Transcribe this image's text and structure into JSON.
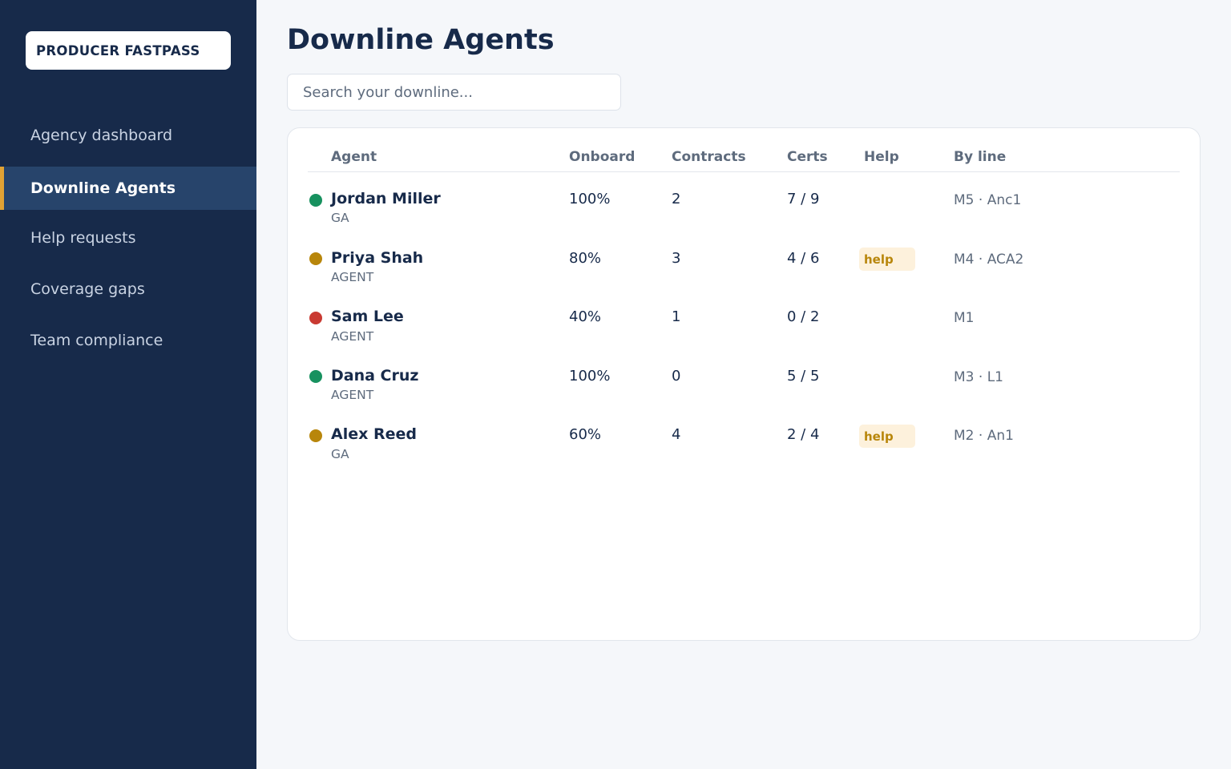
{
  "sidebar": {
    "brand": "PRODUCER FASTPASS",
    "items": [
      {
        "label": "Agency dashboard",
        "active": false
      },
      {
        "label": "Downline Agents",
        "active": true
      },
      {
        "label": "Help requests",
        "active": false
      },
      {
        "label": "Coverage gaps",
        "active": false
      },
      {
        "label": "Team compliance",
        "active": false
      }
    ]
  },
  "main": {
    "title": "Downline Agents",
    "search": {
      "placeholder": "Search your downline...",
      "value": ""
    },
    "table": {
      "columns": [
        "Agent",
        "Onboard",
        "Contracts",
        "Certs",
        "Help",
        "By line"
      ],
      "rows": [
        {
          "name": "Jordan Miller",
          "role": "GA",
          "status_color": "#17915f",
          "onboard": "100%",
          "contracts": "2",
          "certs": "7 / 9",
          "help": "",
          "by_line": "M5 · Anc1"
        },
        {
          "name": "Priya Shah",
          "role": "AGENT",
          "status_color": "#b8860b",
          "onboard": "80%",
          "contracts": "3",
          "certs": "4 / 6",
          "help": "help",
          "by_line": "M4 · ACA2"
        },
        {
          "name": "Sam Lee",
          "role": "AGENT",
          "status_color": "#c93a32",
          "onboard": "40%",
          "contracts": "1",
          "certs": "0 / 2",
          "help": "",
          "by_line": "M1"
        },
        {
          "name": "Dana Cruz",
          "role": "AGENT",
          "status_color": "#17915f",
          "onboard": "100%",
          "contracts": "0",
          "certs": "5 / 5",
          "help": "",
          "by_line": "M3 · L1"
        },
        {
          "name": "Alex Reed",
          "role": "GA",
          "status_color": "#b8860b",
          "onboard": "60%",
          "contracts": "4",
          "certs": "2 / 4",
          "help": "help",
          "by_line": "M2 · An1"
        }
      ]
    }
  }
}
